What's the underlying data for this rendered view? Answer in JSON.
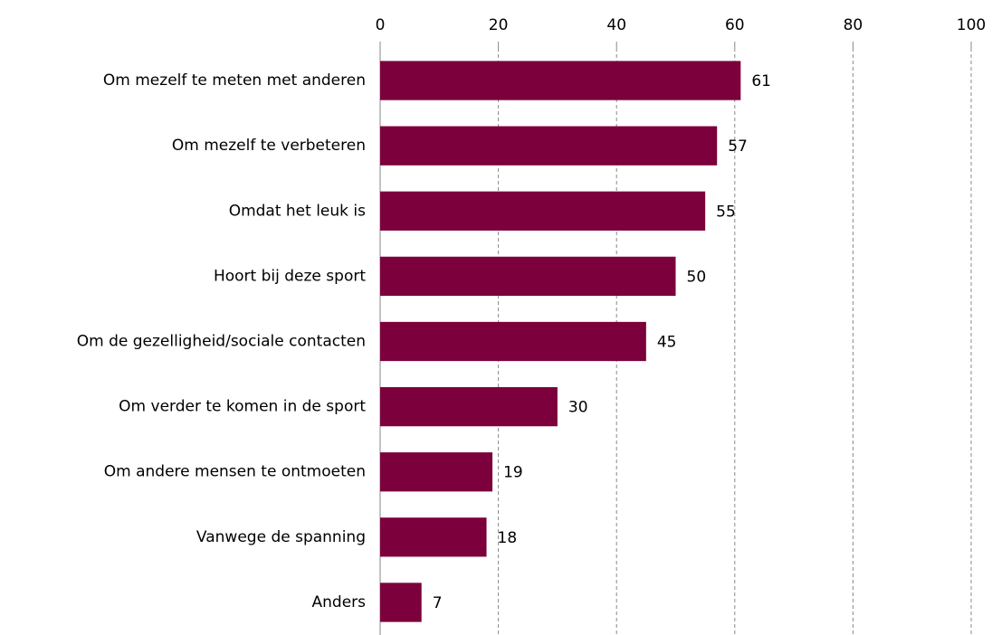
{
  "chart_data": {
    "type": "bar",
    "orientation": "horizontal",
    "categories": [
      "Om mezelf te meten met anderen",
      "Om mezelf te verbeteren",
      "Omdat het leuk is",
      "Hoort bij deze sport",
      "Om de gezelligheid/sociale contacten",
      "Om verder te komen in de sport",
      "Om andere mensen te ontmoeten",
      "Vanwege de spanning",
      "Anders"
    ],
    "values": [
      61,
      57,
      55,
      50,
      45,
      30,
      19,
      18,
      7
    ],
    "color": "#7b003c",
    "xlim": [
      0,
      100
    ],
    "xticks": [
      0,
      20,
      40,
      60,
      80,
      100
    ],
    "grid": true
  }
}
